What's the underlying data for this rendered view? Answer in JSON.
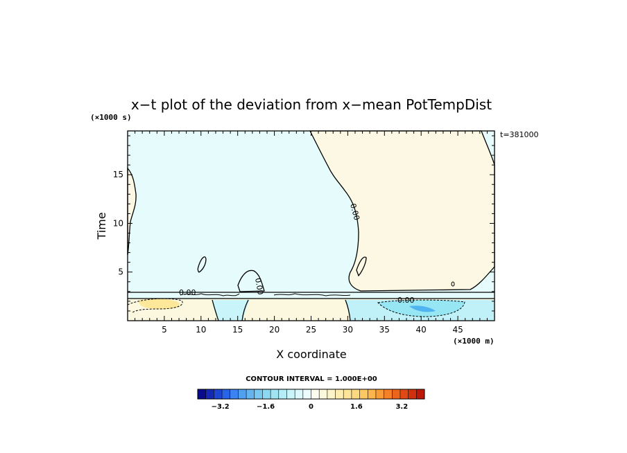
{
  "chart_data": {
    "type": "heatmap",
    "title": "x−t plot of the deviation from x−mean PotTempDist",
    "xlabel": "X coordinate",
    "ylabel": "Time",
    "x_unit": "(×1000 m)",
    "y_unit": "(×1000 s)",
    "time_stamp": "t=381000",
    "xlim": [
      0,
      50
    ],
    "ylim": [
      0,
      19.5
    ],
    "x_ticks": [
      5,
      10,
      15,
      20,
      25,
      30,
      35,
      40,
      45
    ],
    "y_ticks": [
      5,
      10,
      15
    ],
    "contour_labels": [
      "0.00",
      "0.00",
      "0.00",
      "0.00"
    ],
    "contour_interval_text": "CONTOUR INTERVAL = 1.000E+00",
    "colorbar": {
      "range": [
        -4,
        4
      ],
      "tick_labels": [
        "−3.2",
        "−1.6",
        "0",
        "1.6",
        "3.2"
      ],
      "colors": [
        "#0a0a8c",
        "#1428b4",
        "#1e46d2",
        "#2864e6",
        "#3c82f0",
        "#50a0f0",
        "#64b4f0",
        "#78c8f0",
        "#8cd8f0",
        "#a0e4f4",
        "#b4ecf8",
        "#c8f4fa",
        "#dcf8fc",
        "#ecfcfe",
        "#fcfcf0",
        "#fcf8dc",
        "#fcf4c8",
        "#fcecb0",
        "#fce498",
        "#fcd880",
        "#fcc864",
        "#fcb44c",
        "#f89c38",
        "#f48028",
        "#ec641c",
        "#e04814",
        "#d0300c",
        "#bc1808"
      ]
    },
    "colors": {
      "negative": "#e6fcfc",
      "positive": "#fcf8e4",
      "strong_positive": "#fce898",
      "strong_negative": "#96e6f4",
      "deep_negative": "#50b4f0"
    }
  }
}
